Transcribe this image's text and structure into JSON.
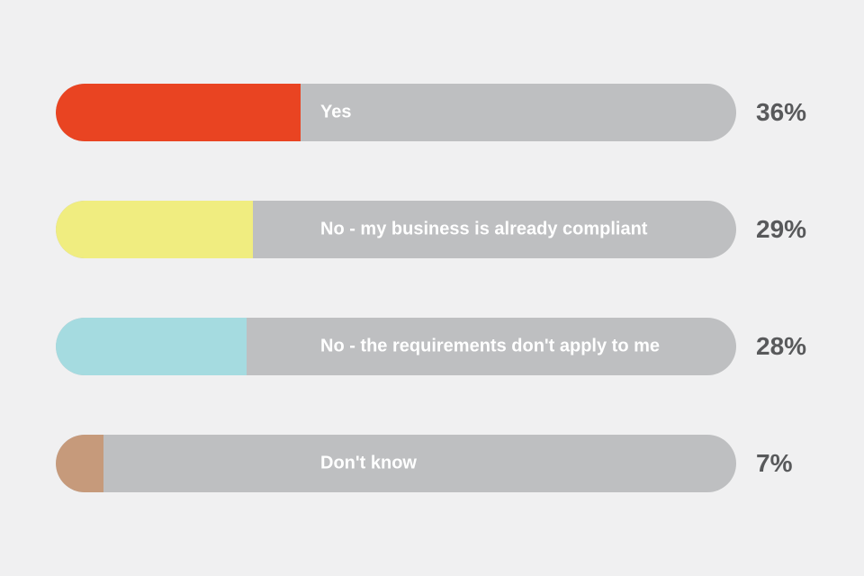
{
  "background": "#F0F0F1",
  "chart_data": {
    "type": "bar",
    "orientation": "horizontal",
    "title": "",
    "xlabel": "",
    "ylabel": "",
    "xlim": [
      0,
      100
    ],
    "grid": false,
    "legend": false,
    "categories": [
      "Yes",
      "No - my business is already compliant",
      "No - the requirements don't apply to me",
      "Don't know"
    ],
    "values": [
      36,
      29,
      28,
      7
    ],
    "value_labels": [
      "36%",
      "29%",
      "28%",
      "7%"
    ],
    "bar_colors": [
      "#E94422",
      "#F0ED80",
      "#A5DBE0",
      "#C69A7B"
    ],
    "track_color": "#BEBFC1",
    "label_text_color": "#FFFFFF",
    "value_text_color": "#58595B"
  },
  "bars": [
    {
      "label": "Yes",
      "value": 36,
      "value_label": "36%",
      "color": "#E94422"
    },
    {
      "label": "No - my business is already compliant",
      "value": 29,
      "value_label": "29%",
      "color": "#F0ED80"
    },
    {
      "label": "No - the requirements don't apply to me",
      "value": 28,
      "value_label": "28%",
      "color": "#A5DBE0"
    },
    {
      "label": "Don't know",
      "value": 7,
      "value_label": "7%",
      "color": "#C69A7B"
    }
  ]
}
